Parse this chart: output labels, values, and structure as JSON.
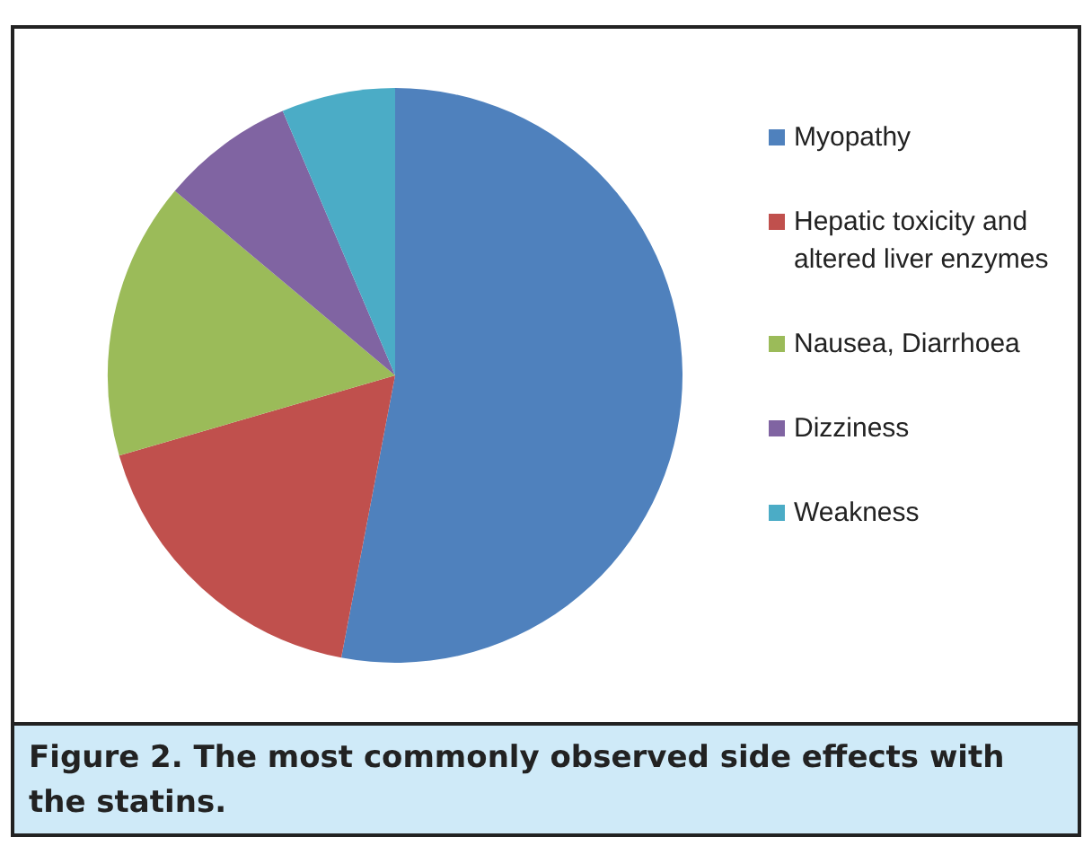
{
  "chart_data": {
    "type": "pie",
    "categories": [
      "Myopathy",
      "Hepatic toxicity and altered liver enzymes",
      "Nausea, Diarrhoea",
      "Dizziness",
      "Weakness"
    ],
    "values": [
      53,
      17.5,
      15.6,
      7.5,
      6.4
    ],
    "colors": [
      "#4f81bd",
      "#c0504d",
      "#9bbb59",
      "#8064a2",
      "#4bacc6"
    ],
    "legend": "right",
    "annotations": [
      "Figure 2. The most commonly observed side effects with the statins."
    ]
  }
}
